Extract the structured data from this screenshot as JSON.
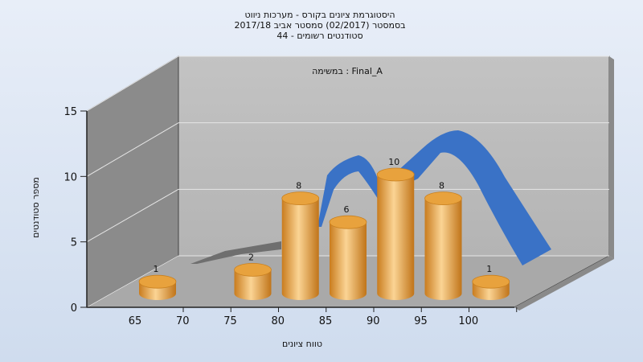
{
  "chart_data": {
    "type": "bar",
    "title_lines": [
      "היסטוגרמת ציונים בקורס - מערכות ניווט",
      "בסמסטר  (02/2017)  סמסטר אביב 2017/18",
      "סטודנטים רשומים - 44"
    ],
    "subtitle": "במשימה : Final_A",
    "xlabel": "טווח ציונים",
    "ylabel": "מספר סטודנטים",
    "x_ticks": [
      "65",
      "70",
      "75",
      "80",
      "85",
      "90",
      "95",
      "100"
    ],
    "y_ticks": [
      "0",
      "5",
      "10",
      "15"
    ],
    "ylim": [
      0,
      15
    ],
    "bars": [
      {
        "x": 65,
        "label": "1",
        "value": 1
      },
      {
        "x": 75,
        "label": "2",
        "value": 2
      },
      {
        "x": 80,
        "label": "8",
        "value": 8
      },
      {
        "x": 85,
        "label": "6",
        "value": 6
      },
      {
        "x": 90,
        "label": "10",
        "value": 10
      },
      {
        "x": 95,
        "label": "8",
        "value": 8
      },
      {
        "x": 100,
        "label": "1",
        "value": 1
      }
    ],
    "colors": {
      "bar": "#e5a040",
      "curve": "#3a72c6",
      "background": "#dce6f4"
    },
    "grid": true
  }
}
